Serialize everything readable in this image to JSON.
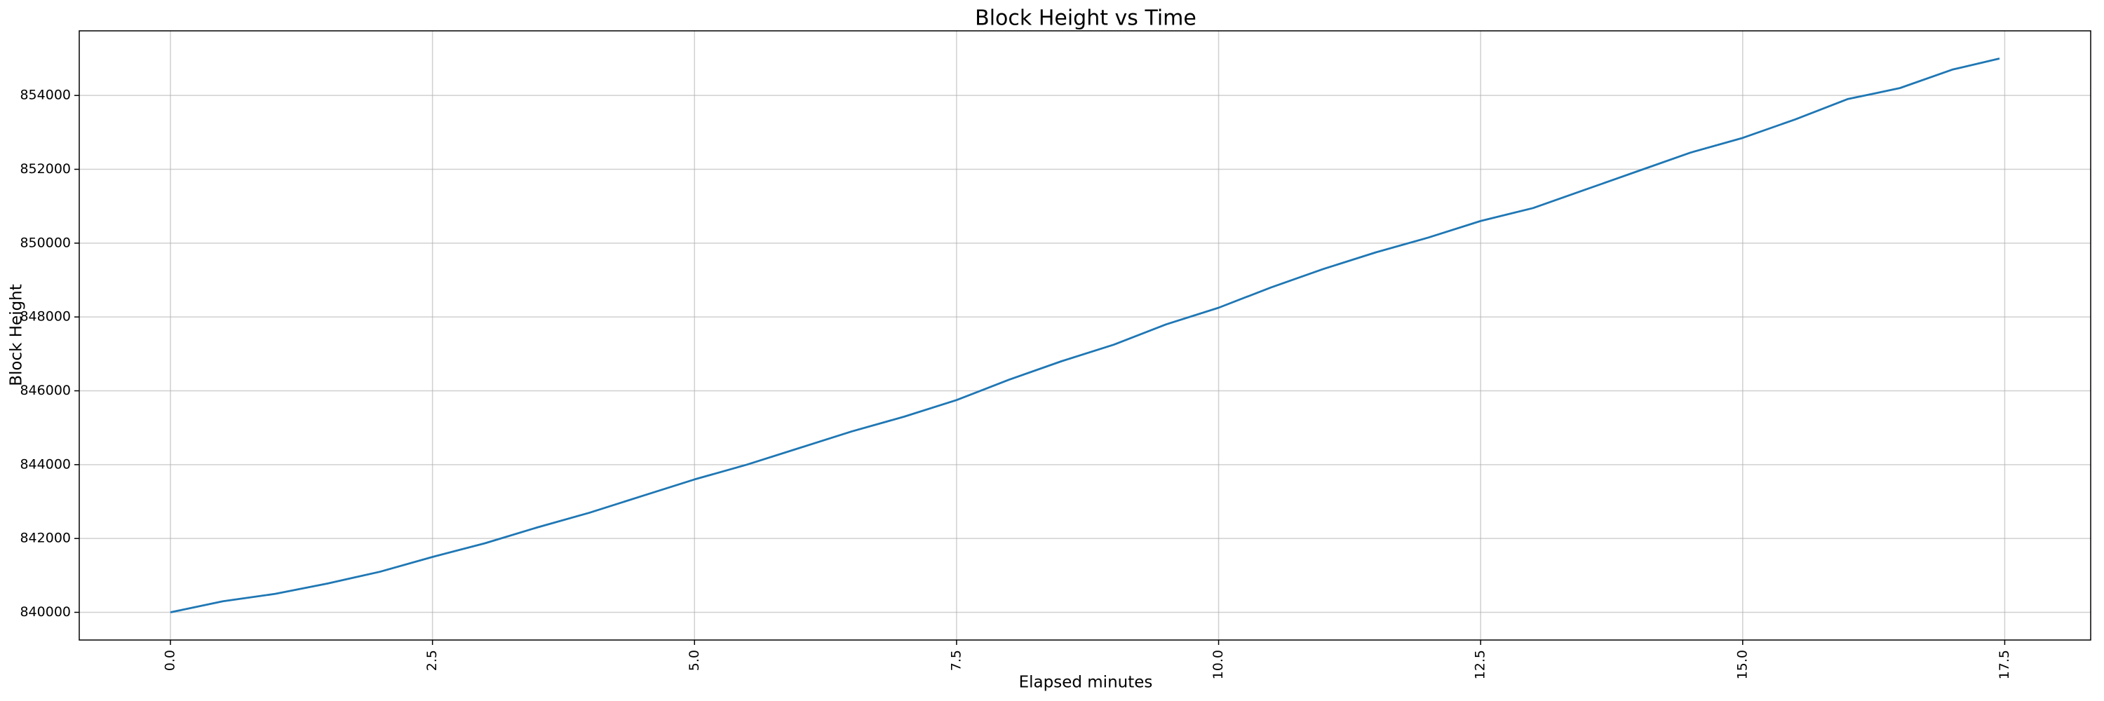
{
  "chart_data": {
    "type": "line",
    "title": "Block Height vs Time",
    "x_label": "Elapsed minutes",
    "y_label": "Block Height",
    "x": [
      0,
      0.5,
      1.0,
      1.5,
      2.0,
      2.5,
      3.0,
      3.5,
      4.0,
      4.5,
      5.0,
      5.5,
      6.0,
      6.5,
      7.0,
      7.5,
      8.0,
      8.5,
      9.0,
      9.5,
      10.0,
      10.5,
      11.0,
      11.5,
      12.0,
      12.5,
      13.0,
      13.5,
      14.0,
      14.5,
      15.0,
      15.5,
      16.0,
      16.5,
      17.0,
      17.45
    ],
    "values": [
      840000,
      840300,
      840500,
      840780,
      841100,
      841500,
      841870,
      842300,
      842700,
      843150,
      843600,
      844000,
      844450,
      844900,
      845300,
      845750,
      846300,
      846800,
      847250,
      847800,
      848250,
      848800,
      849300,
      849750,
      850150,
      850600,
      850950,
      851450,
      851950,
      852450,
      852850,
      853350,
      853900,
      854200,
      854700,
      855000
    ],
    "color": "#1f77b4",
    "xlim": [
      -0.87,
      18.32
    ],
    "ylim": [
      839250,
      855750
    ],
    "xticks": [
      {
        "value": 0,
        "label": "0.0"
      },
      2.5,
      {
        "value": 5,
        "label": "5.0"
      },
      7.5,
      {
        "value": 10,
        "label": "10.0"
      },
      12.5,
      {
        "value": 15,
        "label": "15.0"
      },
      17.5
    ],
    "yticks": [
      840000,
      842000,
      844000,
      846000,
      848000,
      850000,
      852000,
      854000
    ],
    "grid": true
  }
}
